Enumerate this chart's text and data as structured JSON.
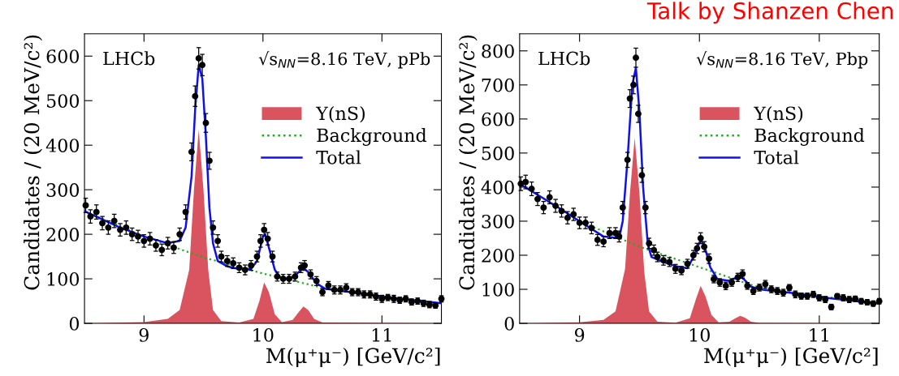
{
  "chart_data": [
    {
      "type": "scatter",
      "xlabel": "M(μ⁺μ⁻) [GeV/c²]",
      "ylabel": "Candidates / (20 MeV/c²)",
      "xlim": [
        8.5,
        11.5
      ],
      "ylim": [
        0,
        650
      ],
      "xticks": [
        9,
        10,
        11
      ],
      "yticks": [
        0,
        100,
        200,
        300,
        400,
        500,
        600
      ],
      "legend": "top right",
      "grid": false,
      "annotations": [
        "LHCb",
        "√s$_{NN}$=8.16 TeV, pPb"
      ],
      "series": [
        {
          "type": "area",
          "name": "Υ(nS)",
          "color": "#d9545e",
          "x": [
            8.5,
            9.0,
            9.2,
            9.3,
            9.38,
            9.42,
            9.46,
            9.5,
            9.54,
            9.58,
            9.65,
            9.8,
            9.92,
            9.97,
            10.01,
            10.05,
            10.1,
            10.16,
            10.25,
            10.3,
            10.34,
            10.38,
            10.43,
            10.5,
            11.5
          ],
          "values": [
            0,
            3,
            10,
            30,
            120,
            300,
            435,
            300,
            120,
            30,
            5,
            2,
            10,
            50,
            92,
            70,
            20,
            3,
            8,
            25,
            38,
            30,
            10,
            2,
            0
          ]
        },
        {
          "type": "line",
          "name": "Background",
          "color": "#22aa22",
          "line_style": "dotted",
          "x": [
            8.5,
            9.0,
            9.5,
            10.0,
            10.5,
            11.0,
            11.5
          ],
          "values": [
            252,
            195,
            148,
            112,
            80,
            60,
            45
          ]
        },
        {
          "type": "line",
          "name": "Total",
          "color": "#1010ee",
          "line_style": "solid",
          "x": [
            8.5,
            8.8,
            9.0,
            9.2,
            9.3,
            9.35,
            9.4,
            9.43,
            9.46,
            9.49,
            9.52,
            9.55,
            9.58,
            9.62,
            9.7,
            9.8,
            9.9,
            9.95,
            10.0,
            10.02,
            10.05,
            10.1,
            10.15,
            10.22,
            10.28,
            10.34,
            10.38,
            10.45,
            10.52,
            10.8,
            11.1,
            11.5
          ],
          "values": [
            252,
            215,
            195,
            180,
            185,
            215,
            330,
            480,
            580,
            550,
            420,
            260,
            180,
            140,
            128,
            122,
            122,
            140,
            195,
            200,
            170,
            120,
            102,
            100,
            110,
            125,
            115,
            90,
            78,
            68,
            57,
            45
          ]
        },
        {
          "color": "#000000",
          "marker": "circle",
          "x": [
            8.51,
            8.55,
            8.6,
            8.65,
            8.7,
            8.75,
            8.8,
            8.85,
            8.9,
            8.95,
            9.0,
            9.05,
            9.1,
            9.15,
            9.2,
            9.25,
            9.3,
            9.35,
            9.4,
            9.43,
            9.46,
            9.49,
            9.52,
            9.55,
            9.58,
            9.62,
            9.65,
            9.7,
            9.75,
            9.8,
            9.85,
            9.9,
            9.95,
            9.98,
            10.01,
            10.04,
            10.08,
            10.12,
            10.17,
            10.22,
            10.27,
            10.32,
            10.35,
            10.4,
            10.45,
            10.5,
            10.55,
            10.6,
            10.65,
            10.7,
            10.75,
            10.8,
            10.85,
            10.9,
            10.95,
            11.0,
            11.05,
            11.1,
            11.15,
            11.2,
            11.25,
            11.3,
            11.35,
            11.4,
            11.45,
            11.5
          ],
          "values": [
            265,
            240,
            250,
            225,
            215,
            230,
            210,
            215,
            200,
            195,
            185,
            190,
            175,
            165,
            180,
            170,
            200,
            250,
            385,
            510,
            595,
            580,
            450,
            365,
            215,
            185,
            150,
            140,
            135,
            125,
            120,
            130,
            150,
            185,
            210,
            190,
            150,
            105,
            100,
            100,
            105,
            125,
            130,
            110,
            95,
            70,
            85,
            75,
            75,
            80,
            70,
            70,
            65,
            65,
            60,
            55,
            58,
            55,
            52,
            55,
            48,
            50,
            45,
            42,
            40,
            55
          ],
          "errors": [
            16,
            15,
            16,
            15,
            15,
            15,
            14,
            15,
            14,
            14,
            14,
            14,
            13,
            13,
            13,
            13,
            14,
            16,
            20,
            23,
            24,
            24,
            21,
            19,
            15,
            14,
            12,
            12,
            12,
            11,
            11,
            11,
            12,
            14,
            14,
            14,
            12,
            10,
            10,
            10,
            10,
            11,
            11,
            10,
            10,
            8,
            9,
            9,
            9,
            9,
            8,
            8,
            8,
            8,
            8,
            8,
            7,
            8,
            7,
            7,
            7,
            7,
            7,
            7,
            6,
            7
          ]
        }
      ]
    },
    {
      "type": "scatter",
      "xlabel": "M(μ⁺μ⁻) [GeV/c²]",
      "ylabel": "Candidates / (20 MeV/c²)",
      "xlim": [
        8.5,
        11.5
      ],
      "ylim": [
        0,
        850
      ],
      "xticks": [
        9,
        10,
        11
      ],
      "yticks": [
        0,
        100,
        200,
        300,
        400,
        500,
        600,
        700,
        800
      ],
      "legend": "top right",
      "grid": false,
      "annotations": [
        "LHCb",
        "√s$_{NN}$=8.16 TeV, Pbp",
        "Talk by Shanzen Chen"
      ],
      "series": [
        {
          "type": "area",
          "name": "Υ(nS)",
          "color": "#d9545e",
          "x": [
            8.5,
            9.0,
            9.2,
            9.3,
            9.38,
            9.42,
            9.46,
            9.5,
            9.54,
            9.58,
            9.65,
            9.8,
            9.92,
            9.97,
            10.01,
            10.05,
            10.1,
            10.16,
            10.25,
            10.3,
            10.34,
            10.38,
            10.43,
            10.5,
            11.5
          ],
          "values": [
            0,
            3,
            10,
            35,
            160,
            380,
            545,
            380,
            150,
            35,
            5,
            2,
            15,
            70,
            110,
            80,
            25,
            3,
            5,
            15,
            22,
            17,
            5,
            1,
            0
          ]
        },
        {
          "type": "line",
          "name": "Background",
          "color": "#22aa22",
          "line_style": "dotted",
          "x": [
            8.5,
            9.0,
            9.5,
            10.0,
            10.5,
            11.0,
            11.5
          ],
          "values": [
            410,
            300,
            225,
            165,
            105,
            80,
            58
          ]
        },
        {
          "type": "line",
          "name": "Total",
          "color": "#1010ee",
          "line_style": "solid",
          "x": [
            8.5,
            8.8,
            9.0,
            9.2,
            9.33,
            9.36,
            9.4,
            9.44,
            9.47,
            9.5,
            9.53,
            9.57,
            9.6,
            9.7,
            9.8,
            9.9,
            9.95,
            10.01,
            10.04,
            10.09,
            10.15,
            10.25,
            10.33,
            10.37,
            10.43,
            10.5,
            10.8,
            11.1,
            11.5
          ],
          "values": [
            410,
            345,
            300,
            255,
            250,
            300,
            480,
            700,
            750,
            620,
            400,
            230,
            195,
            180,
            168,
            162,
            195,
            245,
            230,
            165,
            130,
            125,
            138,
            130,
            108,
            100,
            88,
            73,
            58
          ]
        },
        {
          "color": "#000000",
          "marker": "circle",
          "x": [
            8.51,
            8.55,
            8.6,
            8.65,
            8.7,
            8.75,
            8.8,
            8.85,
            8.9,
            8.95,
            9.0,
            9.05,
            9.1,
            9.15,
            9.2,
            9.25,
            9.3,
            9.33,
            9.36,
            9.4,
            9.42,
            9.45,
            9.47,
            9.49,
            9.52,
            9.55,
            9.58,
            9.62,
            9.65,
            9.7,
            9.75,
            9.8,
            9.85,
            9.9,
            9.95,
            9.98,
            10.01,
            10.04,
            10.08,
            10.12,
            10.17,
            10.22,
            10.27,
            10.32,
            10.36,
            10.4,
            10.45,
            10.5,
            10.55,
            10.6,
            10.65,
            10.7,
            10.75,
            10.8,
            10.85,
            10.9,
            10.95,
            11.0,
            11.05,
            11.1,
            11.15,
            11.2,
            11.25,
            11.3,
            11.35,
            11.4,
            11.45,
            11.5
          ],
          "values": [
            410,
            415,
            395,
            365,
            340,
            370,
            345,
            330,
            310,
            320,
            295,
            295,
            280,
            245,
            240,
            265,
            265,
            255,
            340,
            480,
            660,
            700,
            780,
            615,
            435,
            340,
            235,
            215,
            195,
            185,
            180,
            160,
            155,
            175,
            200,
            220,
            250,
            225,
            190,
            130,
            120,
            110,
            120,
            135,
            145,
            110,
            95,
            105,
            115,
            100,
            95,
            90,
            105,
            85,
            80,
            80,
            85,
            75,
            70,
            48,
            80,
            75,
            70,
            72,
            65,
            62,
            58,
            65
          ],
          "errors": [
            20,
            20,
            20,
            19,
            18,
            19,
            19,
            18,
            18,
            18,
            17,
            17,
            17,
            16,
            15,
            16,
            16,
            16,
            18,
            22,
            26,
            26,
            28,
            25,
            21,
            18,
            15,
            15,
            14,
            14,
            13,
            13,
            12,
            13,
            14,
            15,
            16,
            15,
            14,
            11,
            11,
            11,
            11,
            12,
            12,
            10,
            10,
            10,
            11,
            10,
            10,
            10,
            9,
            10,
            9,
            9,
            9,
            9,
            9,
            8,
            7,
            9,
            9,
            8,
            8,
            8,
            8,
            8
          ]
        }
      ]
    }
  ]
}
